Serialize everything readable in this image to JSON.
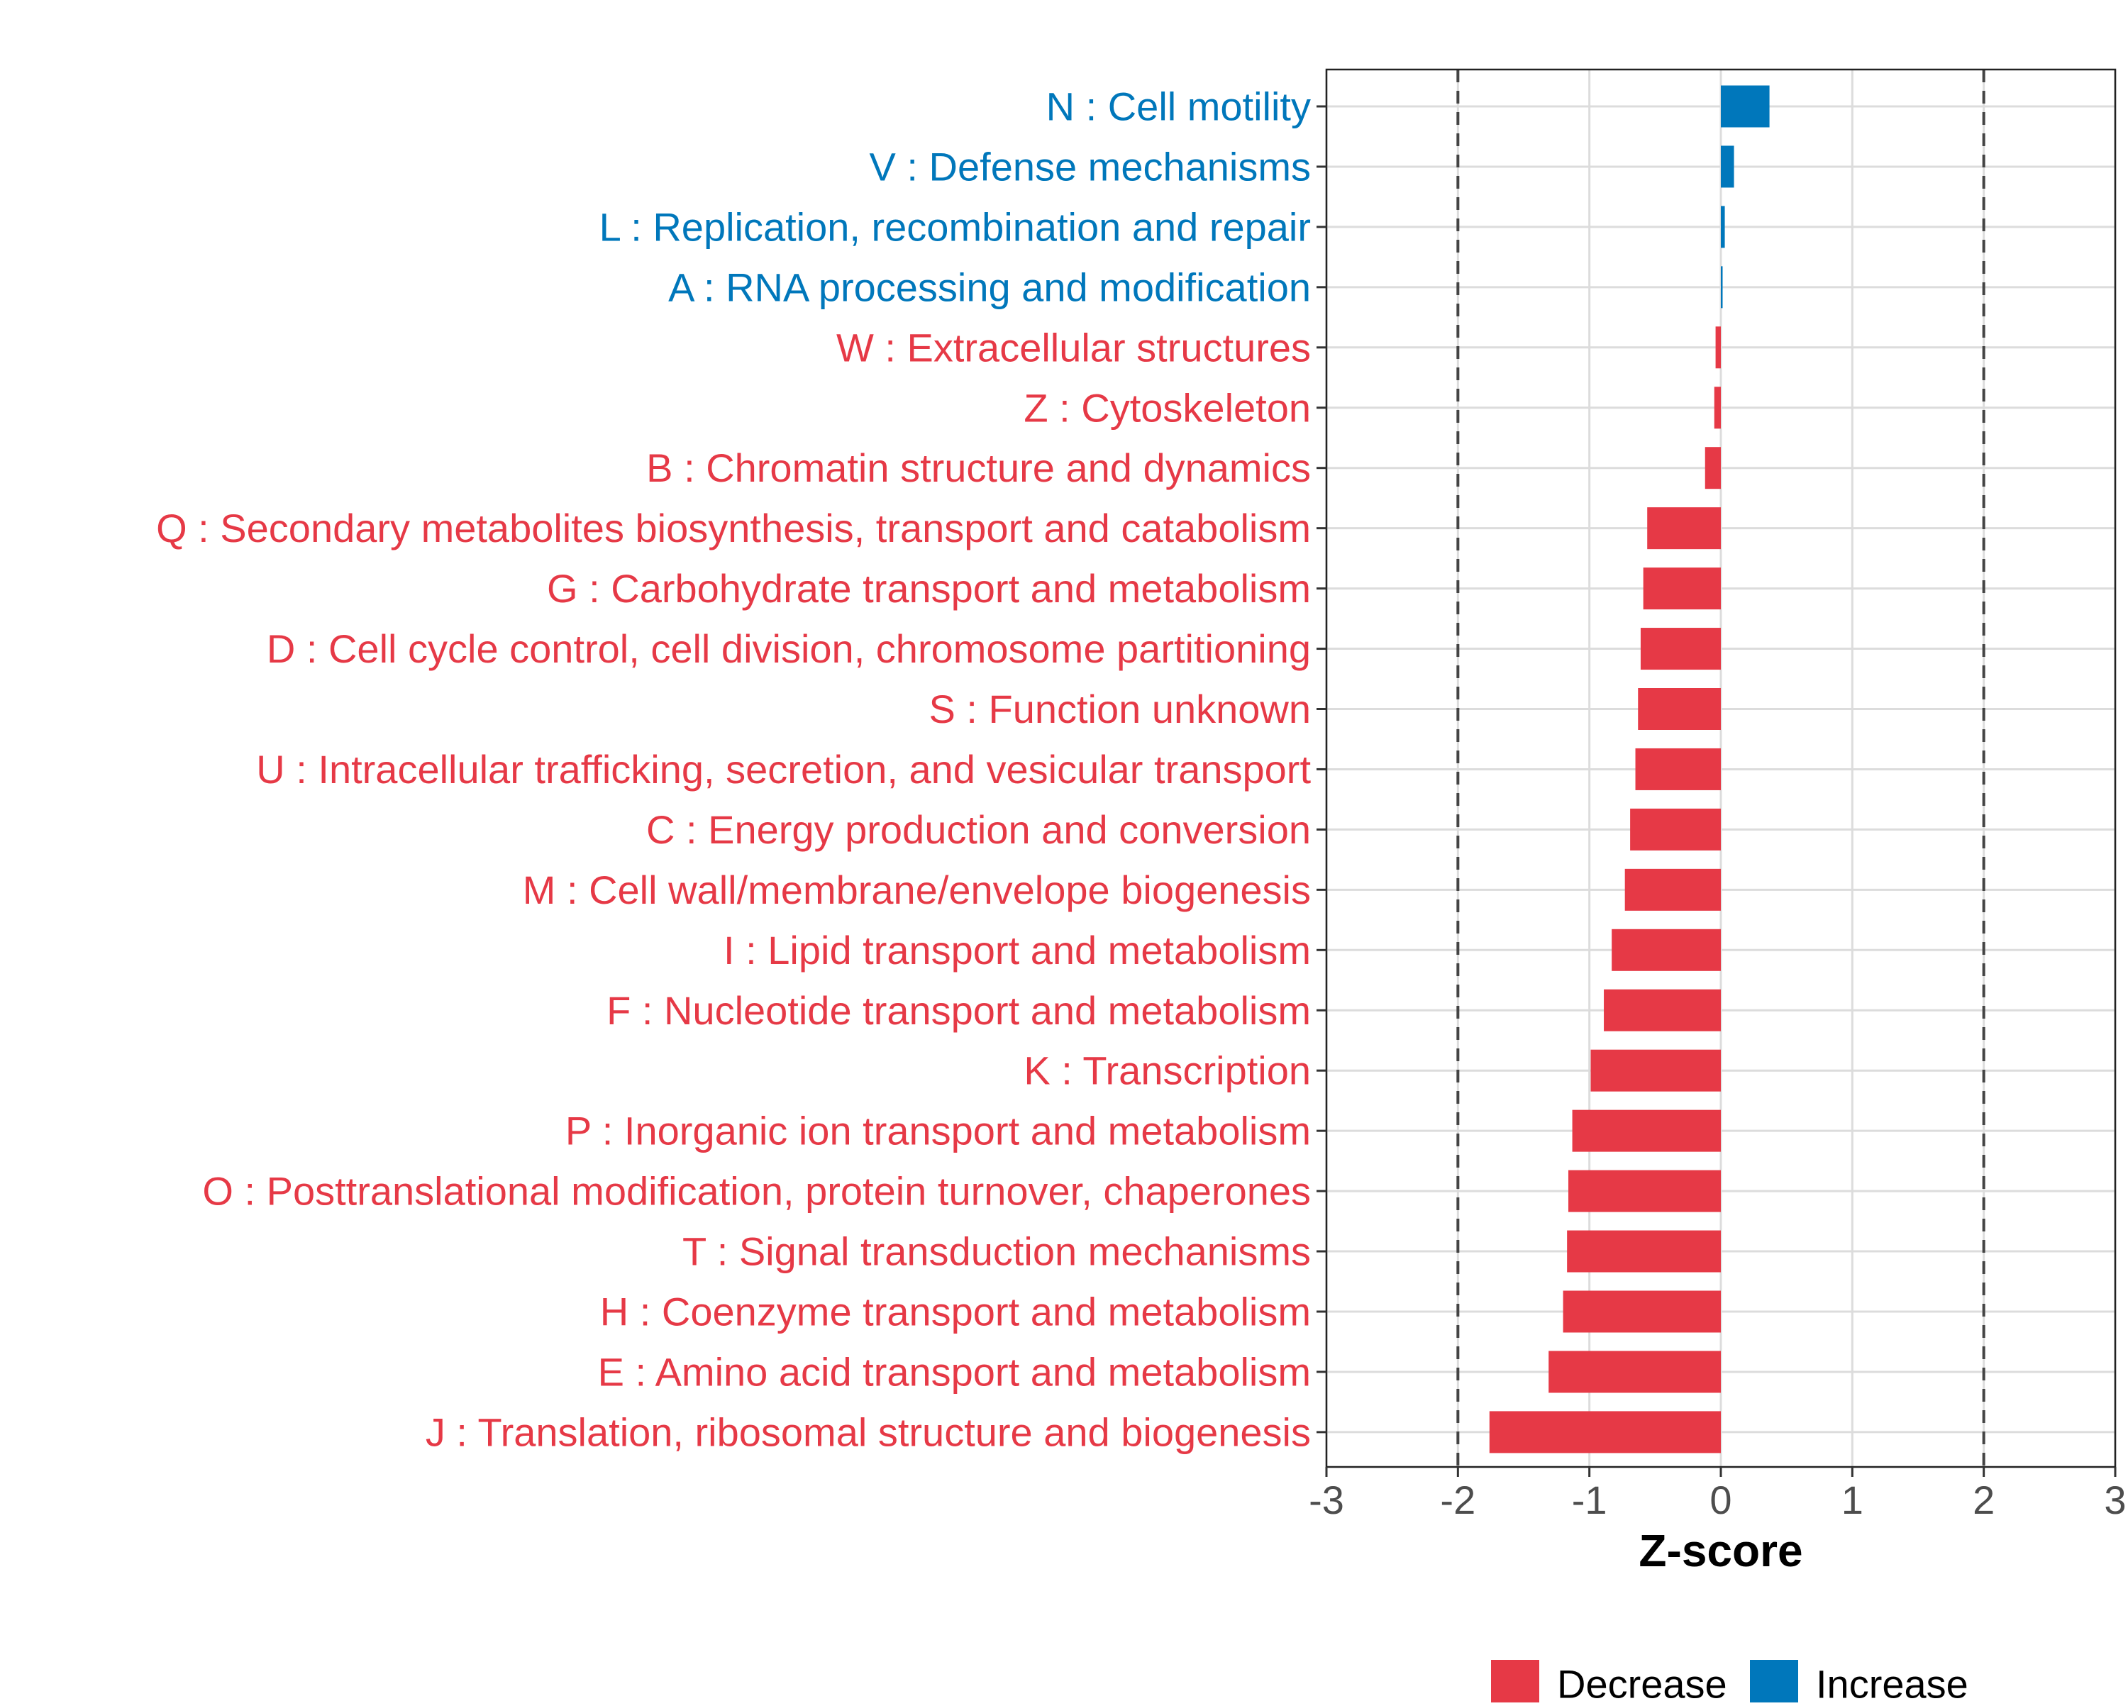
{
  "chart_data": {
    "type": "bar",
    "orientation": "horizontal",
    "title": "",
    "xlabel": "Z-score",
    "ylabel": "",
    "xlim": [
      -3,
      3
    ],
    "xticks": [
      -3,
      -2,
      -1,
      0,
      1,
      2,
      3
    ],
    "reference_lines": [
      -2,
      2
    ],
    "grid": true,
    "legend_position": "bottom",
    "legend": [
      {
        "label": "Decrease",
        "color": "#E63946"
      },
      {
        "label": "Increase",
        "color": "#0077BB"
      }
    ],
    "categories": [
      "N : Cell motility",
      "V : Defense mechanisms",
      "L : Replication, recombination and repair",
      "A : RNA processing and modification",
      "W : Extracellular structures",
      "Z : Cytoskeleton",
      "B : Chromatin structure and dynamics",
      "Q : Secondary metabolites biosynthesis, transport and catabolism",
      "G : Carbohydrate transport and metabolism",
      "D : Cell cycle control, cell division, chromosome partitioning",
      "S : Function unknown",
      "U : Intracellular trafficking, secretion, and vesicular transport",
      "C : Energy production and conversion",
      "M : Cell wall/membrane/envelope biogenesis",
      "I : Lipid transport and metabolism",
      "F : Nucleotide transport and metabolism",
      "K : Transcription",
      "P : Inorganic ion transport and metabolism",
      "O : Posttranslational modification, protein turnover, chaperones",
      "T : Signal transduction mechanisms",
      "H : Coenzyme transport and metabolism",
      "E : Amino acid transport and metabolism",
      "J : Translation, ribosomal structure and biogenesis"
    ],
    "values": [
      0.37,
      0.1,
      0.03,
      0.01,
      -0.04,
      -0.05,
      -0.12,
      -0.56,
      -0.59,
      -0.61,
      -0.63,
      -0.65,
      -0.69,
      -0.73,
      -0.83,
      -0.89,
      -0.99,
      -1.13,
      -1.16,
      -1.17,
      -1.2,
      -1.31,
      -1.76
    ]
  }
}
